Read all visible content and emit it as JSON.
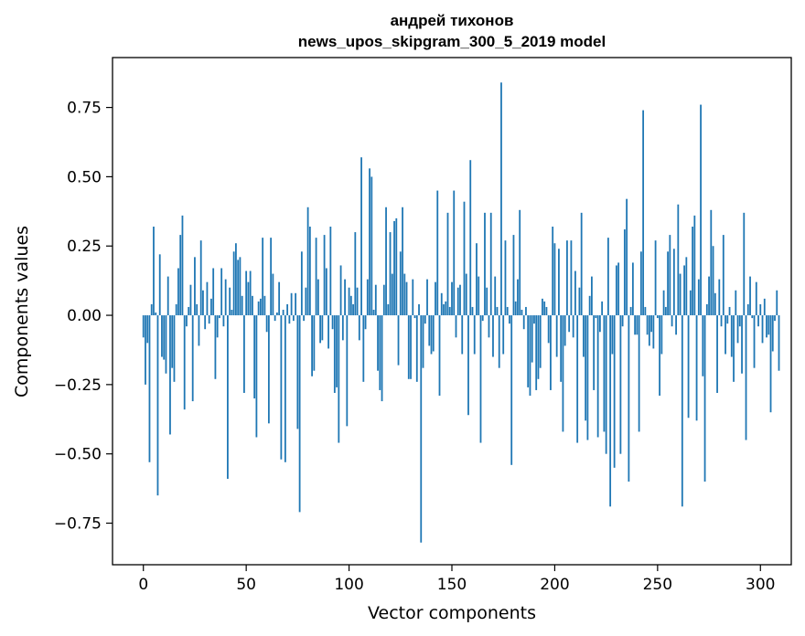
{
  "chart_data": {
    "type": "bar",
    "title_line1": "андрей тихонов",
    "title_line2": "news_upos_skipgram_300_5_2019 model",
    "xlabel": "Vector components",
    "ylabel": "Components values",
    "xlim": [
      -15,
      315
    ],
    "ylim": [
      -0.9,
      0.93
    ],
    "xticks": [
      0,
      50,
      100,
      150,
      200,
      250,
      300
    ],
    "yticks": [
      -0.75,
      -0.5,
      -0.25,
      0.0,
      0.25,
      0.5,
      0.75
    ],
    "ytick_labels": [
      "−0.75",
      "−0.50",
      "−0.25",
      "0.00",
      "0.25",
      "0.50",
      "0.75"
    ],
    "grid": false,
    "bar_color": "#1f77b4",
    "values": [
      -0.08,
      -0.25,
      -0.1,
      -0.53,
      0.04,
      0.32,
      0.01,
      -0.65,
      0.22,
      -0.15,
      -0.16,
      -0.21,
      0.14,
      -0.43,
      -0.19,
      -0.24,
      0.04,
      0.17,
      0.29,
      0.36,
      -0.34,
      -0.04,
      0.03,
      0.11,
      -0.31,
      0.21,
      0.04,
      -0.11,
      0.27,
      0.09,
      -0.05,
      0.12,
      -0.03,
      0.06,
      0.17,
      -0.23,
      -0.08,
      -0.01,
      0.17,
      -0.04,
      0.13,
      -0.59,
      0.1,
      0.02,
      0.23,
      0.26,
      0.2,
      0.21,
      0.07,
      -0.28,
      0.16,
      0.12,
      0.16,
      0.07,
      -0.3,
      -0.44,
      0.05,
      0.06,
      0.28,
      0.07,
      -0.06,
      -0.39,
      0.28,
      0.15,
      -0.02,
      0.01,
      0.12,
      -0.52,
      0.02,
      -0.53,
      0.04,
      -0.03,
      0.08,
      -0.02,
      0.08,
      -0.41,
      -0.71,
      0.23,
      -0.02,
      0.1,
      0.39,
      0.32,
      -0.22,
      -0.2,
      0.28,
      0.13,
      -0.1,
      -0.09,
      0.29,
      0.17,
      -0.12,
      0.32,
      -0.05,
      -0.28,
      -0.26,
      -0.46,
      0.18,
      -0.09,
      0.13,
      -0.4,
      0.1,
      0.07,
      0.04,
      0.3,
      0.1,
      -0.09,
      0.57,
      -0.24,
      -0.05,
      0.13,
      0.53,
      0.5,
      0.02,
      0.11,
      -0.2,
      -0.27,
      -0.31,
      0.11,
      0.39,
      0.04,
      0.3,
      0.15,
      0.34,
      0.35,
      -0.18,
      0.23,
      0.39,
      0.15,
      0.12,
      -0.23,
      -0.23,
      0.13,
      -0.01,
      -0.24,
      0.04,
      -0.82,
      -0.19,
      -0.03,
      0.13,
      -0.11,
      -0.14,
      -0.13,
      0.12,
      0.45,
      -0.29,
      0.08,
      0.04,
      0.05,
      0.37,
      0.03,
      0.12,
      0.45,
      -0.08,
      0.1,
      0.11,
      -0.14,
      0.41,
      0.15,
      -0.36,
      0.56,
      0.03,
      -0.14,
      0.26,
      0.14,
      -0.46,
      -0.02,
      0.37,
      0.1,
      -0.08,
      0.37,
      -0.15,
      0.14,
      0.03,
      -0.19,
      0.84,
      -0.14,
      0.27,
      0.03,
      -0.03,
      -0.54,
      0.29,
      0.05,
      0.13,
      0.38,
      0.02,
      -0.05,
      0.03,
      -0.26,
      -0.29,
      -0.17,
      -0.03,
      -0.27,
      -0.23,
      -0.19,
      0.06,
      0.05,
      0.03,
      -0.1,
      -0.27,
      0.32,
      0.26,
      -0.15,
      0.24,
      -0.24,
      -0.42,
      -0.11,
      0.27,
      -0.06,
      0.27,
      -0.08,
      0.16,
      -0.46,
      0.1,
      0.37,
      -0.15,
      -0.38,
      -0.45,
      0.07,
      0.14,
      -0.27,
      -0.01,
      -0.44,
      -0.06,
      0.05,
      -0.42,
      -0.5,
      0.28,
      -0.69,
      -0.14,
      -0.55,
      0.18,
      0.19,
      -0.5,
      -0.04,
      0.31,
      0.42,
      -0.6,
      0.03,
      0.19,
      -0.07,
      -0.07,
      -0.42,
      0.23,
      0.74,
      0.03,
      -0.07,
      -0.11,
      -0.06,
      -0.12,
      0.27,
      -0.01,
      -0.29,
      -0.14,
      0.09,
      0.03,
      0.23,
      0.29,
      -0.04,
      0.24,
      -0.07,
      0.4,
      0.15,
      -0.69,
      0.18,
      0.21,
      -0.37,
      0.09,
      0.32,
      0.36,
      -0.38,
      0.13,
      0.76,
      -0.22,
      -0.6,
      0.04,
      0.14,
      0.38,
      0.25,
      0.08,
      -0.28,
      0.13,
      -0.04,
      0.29,
      -0.14,
      -0.03,
      0.03,
      -0.15,
      -0.24,
      0.09,
      -0.1,
      -0.04,
      -0.21,
      0.37,
      -0.45,
      0.04,
      0.14,
      -0.01,
      -0.19,
      0.12,
      -0.04,
      0.04,
      -0.1,
      0.06,
      -0.08,
      -0.07,
      -0.35,
      -0.13,
      -0.02,
      0.09,
      -0.2
    ]
  }
}
